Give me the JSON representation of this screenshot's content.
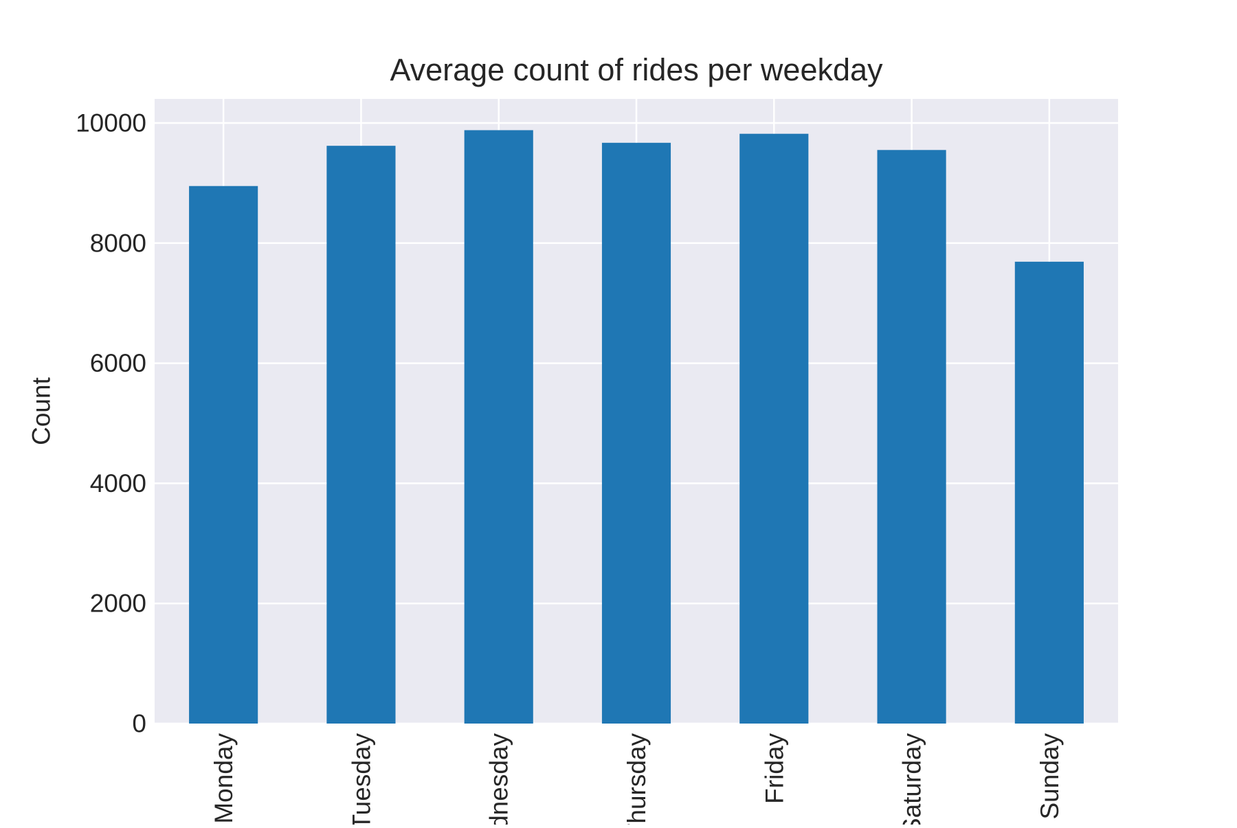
{
  "chart_data": {
    "type": "bar",
    "title": "Average count of rides per weekday",
    "xlabel": "",
    "ylabel": "Count",
    "categories": [
      "Monday",
      "Tuesday",
      "Wednesday",
      "Thursday",
      "Friday",
      "Saturday",
      "Sunday"
    ],
    "values": [
      8950,
      9620,
      9880,
      9670,
      9820,
      9550,
      7690
    ],
    "ylim": [
      0,
      10400
    ],
    "yticks": [
      0,
      2000,
      4000,
      6000,
      8000,
      10000
    ],
    "grid": true,
    "legend": "none",
    "bar_color": "#1f77b4",
    "plot_background": "#eaeaf2",
    "grid_color": "#ffffff"
  }
}
